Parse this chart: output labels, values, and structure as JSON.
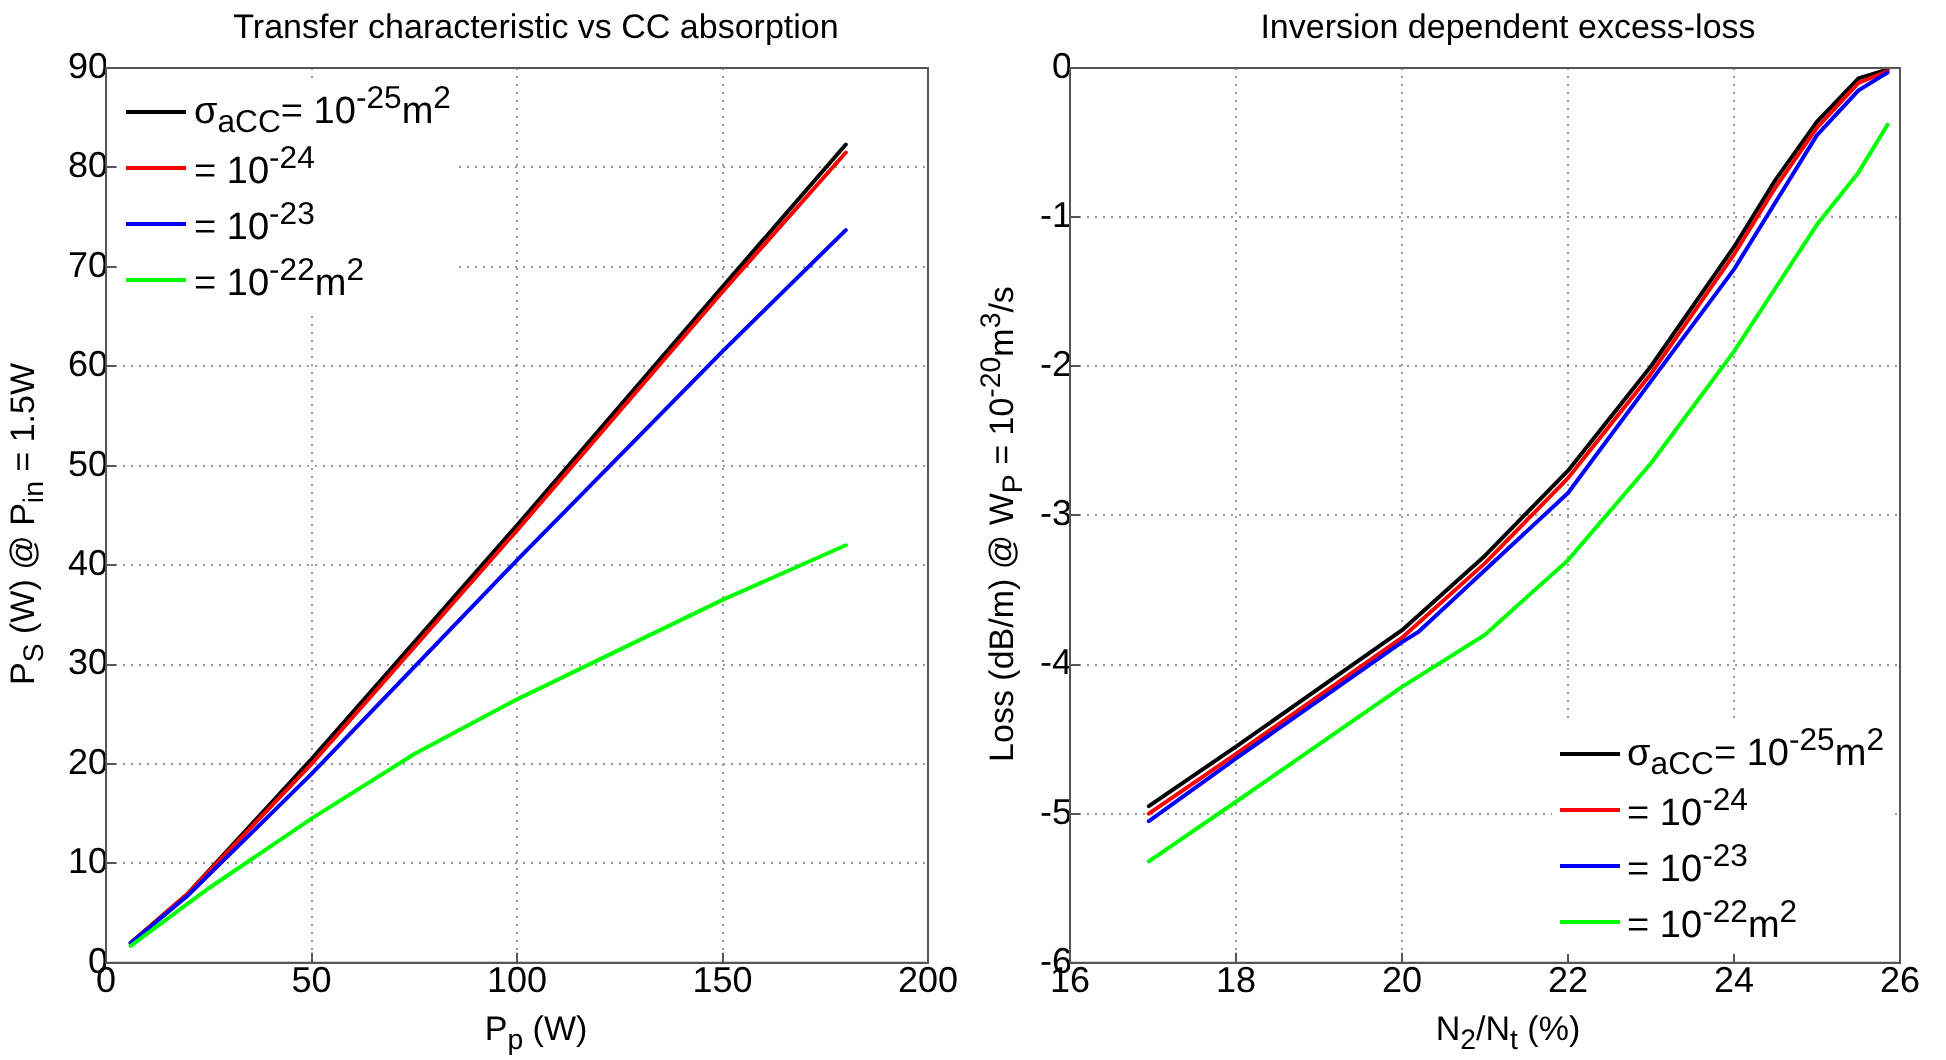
{
  "chart_data": [
    {
      "type": "line",
      "title": "Transfer characteristic vs CC absorption",
      "xlabel": "P$_{p}$ (W)",
      "ylabel": "P$_{S}$ (W) @ P$_{in}$ = 1.5W",
      "xlim": [
        0,
        200
      ],
      "xticks": [
        0,
        50,
        100,
        150,
        200
      ],
      "ylim": [
        0,
        90
      ],
      "yticks": [
        0,
        10,
        20,
        30,
        40,
        50,
        60,
        70,
        80,
        90
      ],
      "grid": true,
      "legend": "top left",
      "marker": "none",
      "series": [
        {
          "name": "σ$_{aCC}$= 10$^{-25}$m$^{2}$",
          "color": "#000000",
          "x": [
            6,
            20,
            50,
            100,
            150,
            180
          ],
          "values": [
            2,
            7,
            20.5,
            44,
            68,
            82.3
          ]
        },
        {
          "name": "= 10$^{-24}$",
          "color": "#ff0000",
          "x": [
            6,
            20,
            50,
            100,
            150,
            180
          ],
          "values": [
            2,
            7,
            20,
            43.5,
            67.5,
            81.5
          ]
        },
        {
          "name": "= 10$^{-23}$",
          "color": "#0000ff",
          "x": [
            6,
            20,
            50,
            100,
            150,
            180
          ],
          "values": [
            2,
            6.8,
            19,
            40.5,
            61.5,
            73.7
          ]
        },
        {
          "name": "= 10$^{-22}$m$^{2}$",
          "color": "#00ff00",
          "x": [
            6,
            25,
            50,
            75,
            100,
            125,
            150,
            180
          ],
          "values": [
            1.7,
            7.5,
            14.5,
            21,
            26.5,
            31.5,
            36.5,
            42
          ]
        }
      ]
    },
    {
      "type": "line",
      "title": "Inversion dependent excess-loss",
      "xlabel": "N$_{2}$/N$_{t}$ (%)",
      "ylabel": "Loss (dB/m) @ W$_{P}$ = 10$^{-20}$m$^{3}$/s",
      "xlim": [
        16,
        26
      ],
      "xticks": [
        16,
        18,
        20,
        22,
        24,
        26
      ],
      "ylim": [
        -6,
        0
      ],
      "yticks": [
        -6,
        -5,
        -4,
        -3,
        -2,
        -1,
        0
      ],
      "grid": true,
      "legend": "bottom right",
      "marker": "none",
      "series": [
        {
          "name": "σ$_{aCC}$= 10$^{-25}$m$^{2}$",
          "color": "#000000",
          "x": [
            16.95,
            18,
            20,
            21,
            22,
            23,
            24,
            24.5,
            25,
            25.5,
            25.85
          ],
          "values": [
            -4.95,
            -4.55,
            -3.77,
            -3.27,
            -2.7,
            -2,
            -1.2,
            -0.75,
            -0.36,
            -0.07,
            -0.01
          ]
        },
        {
          "name": "= 10$^{-24}$",
          "color": "#ff0000",
          "x": [
            16.95,
            18,
            20,
            21,
            22,
            23,
            24,
            24.5,
            25,
            25.5,
            25.85
          ],
          "values": [
            -5,
            -4.6,
            -3.82,
            -3.32,
            -2.75,
            -2.05,
            -1.25,
            -0.8,
            -0.4,
            -0.1,
            -0.02
          ]
        },
        {
          "name": "= 10$^{-23}$",
          "color": "#0000ff",
          "x": [
            16.95,
            18,
            20,
            20.2,
            22,
            23,
            24,
            25,
            25.5,
            25.85
          ],
          "values": [
            -5.05,
            -4.63,
            -3.85,
            -3.78,
            -2.85,
            -2.1,
            -1.35,
            -0.45,
            -0.15,
            -0.03
          ]
        },
        {
          "name": "= 10$^{-22}$m$^{2}$",
          "color": "#00ff00",
          "x": [
            16.95,
            18,
            20,
            21,
            22,
            23,
            24,
            25,
            25.5,
            25.85
          ],
          "values": [
            -5.32,
            -4.92,
            -4.15,
            -3.8,
            -3.3,
            -2.65,
            -1.9,
            -1.05,
            -0.7,
            -0.38
          ]
        }
      ]
    }
  ]
}
